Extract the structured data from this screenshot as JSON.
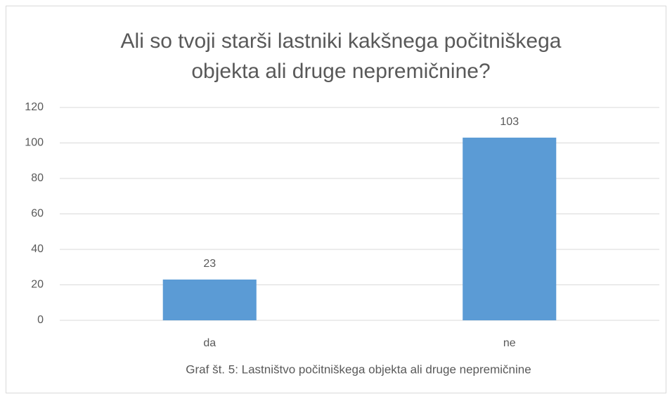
{
  "chart_data": {
    "type": "bar",
    "title": [
      "Ali so tvoji starši lastniki kakšnega počitniškega",
      "objekta ali druge nepremičnine?"
    ],
    "categories": [
      "da",
      "ne"
    ],
    "values": [
      23,
      103
    ],
    "color": "#5b9bd5",
    "ylim": [
      0,
      120
    ],
    "yticks": [
      0,
      20,
      40,
      60,
      80,
      100,
      120
    ],
    "grid": true,
    "caption": "Graf št. 5: Lastništvo počitniškega objekta ali druge nepremičnine"
  }
}
